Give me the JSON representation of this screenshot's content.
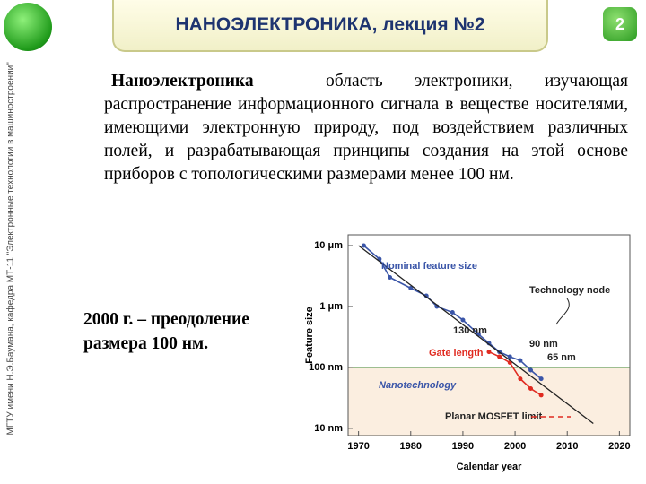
{
  "header": {
    "title": "НАНОЭЛЕКТРОНИКА, лекция №2",
    "page_number": "2"
  },
  "sidebar": "МГТУ имени Н.Э.Баумана, кафедра МТ-11 \"Электронные технологии в машиностроении\"",
  "paragraph": {
    "lead": "Наноэлектроника",
    "text": "– область электроники, изучающая распространение информационного сигнала в веществе носителями, имеющими электронную природу, под воздействием различных полей, и разрабатывающая принципы создания на этой основе приборов с топологическими размерами менее 100 нм."
  },
  "note": "2000 г. – преодоление размера 100 нм.",
  "figure": {
    "chart_data": {
      "type": "line",
      "x_label": "Calendar year",
      "y_label": "Feature size",
      "log_y": true,
      "xlim": [
        1968,
        2022
      ],
      "xticks": [
        1970,
        1980,
        1990,
        2000,
        2010,
        2020
      ],
      "ylim": [
        7.6,
        15000
      ],
      "yticks": [
        {
          "value": 10,
          "label": "10 nm"
        },
        {
          "value": 100,
          "label": "100 nm"
        },
        {
          "value": 1000,
          "label": "1 μm"
        },
        {
          "value": 10000,
          "label": "10 μm"
        }
      ],
      "series": [
        {
          "name": "Nominal feature size",
          "color": "#3a55a8",
          "markers": true,
          "x": [
            1971,
            1974,
            1976,
            1980,
            1983,
            1985,
            1988,
            1990,
            1993,
            1995,
            1997,
            1999,
            2001,
            2003,
            2005
          ],
          "values": [
            10000,
            6000,
            3000,
            2000,
            1500,
            1000,
            800,
            600,
            350,
            250,
            180,
            150,
            130,
            90,
            65
          ]
        },
        {
          "name": "Gate length",
          "color": "#e02a20",
          "markers": true,
          "x": [
            1995,
            1997,
            1999,
            2001,
            2003,
            2005
          ],
          "values": [
            180,
            150,
            120,
            65,
            45,
            35
          ]
        },
        {
          "color": "#222222",
          "markers": false,
          "x": [
            1970,
            2015
          ],
          "values": [
            10000,
            12
          ]
        }
      ],
      "annotations": [
        "Technology node",
        "130 nm",
        "90 nm",
        "65 nm",
        "Nanotechnology",
        "Planar MOSFET limit"
      ]
    }
  }
}
